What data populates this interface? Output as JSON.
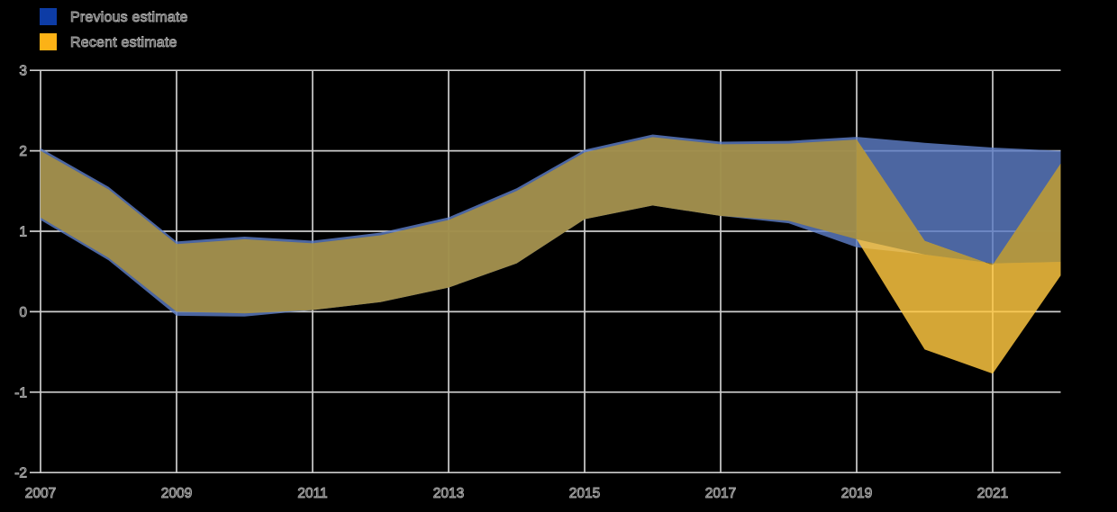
{
  "background_color": "#000000",
  "legend": {
    "position": "top-left",
    "items": [
      {
        "label": "Previous estimate",
        "swatch_color": "#0d3ca6"
      },
      {
        "label": "Recent estimate",
        "swatch_color": "#fcb216"
      }
    ]
  },
  "chart_data": {
    "type": "area",
    "subtype": "range-band",
    "title": "",
    "xlabel": "",
    "ylabel": "",
    "x_range": [
      2007,
      2022
    ],
    "ylim": [
      -2,
      3
    ],
    "grid": true,
    "legend_position": "top-left",
    "years": [
      2007,
      2008,
      2009,
      2010,
      2011,
      2012,
      2013,
      2014,
      2015,
      2016,
      2017,
      2018,
      2019,
      2020,
      2021,
      2022
    ],
    "x_tick_years": [
      2007,
      2009,
      2011,
      2013,
      2015,
      2017,
      2019,
      2021
    ],
    "x_tick_labels": [
      "2007",
      "2009",
      "2011",
      "2013",
      "2015",
      "2017",
      "2019",
      "2021"
    ],
    "y_tick_values": [
      3,
      2,
      1,
      0,
      -1,
      -2
    ],
    "y_tick_labels": [
      "3",
      "2",
      "1",
      "0",
      "-1",
      "-2"
    ],
    "series": [
      {
        "name": "Previous estimate",
        "fill_color": "rgba(93,124,197,0.82)",
        "upper": [
          2.0,
          1.52,
          0.84,
          0.9,
          0.85,
          0.95,
          1.14,
          1.5,
          1.98,
          2.17,
          2.08,
          2.09,
          2.14,
          2.1,
          2.04,
          2.0
        ],
        "lower": [
          1.14,
          0.64,
          -0.05,
          -0.06,
          0.02,
          0.12,
          0.3,
          0.6,
          1.15,
          1.32,
          1.19,
          1.1,
          0.8,
          0.71,
          0.6,
          0.62
        ]
      },
      {
        "name": "Recent estimate",
        "fill_color": "rgba(255,200,65,0.83)",
        "upper": [
          2.0,
          1.52,
          0.84,
          0.9,
          0.85,
          0.95,
          1.14,
          1.5,
          1.98,
          2.17,
          2.08,
          2.09,
          2.14,
          0.88,
          0.58,
          1.84
        ],
        "lower": [
          1.17,
          0.67,
          0.0,
          -0.02,
          0.02,
          0.12,
          0.3,
          0.6,
          1.15,
          1.32,
          1.19,
          1.13,
          0.9,
          -0.47,
          -0.77,
          0.45
        ]
      }
    ],
    "divergence_year": 2019,
    "overlap_fill_color": "rgba(168,145,63,0.88)",
    "gridline_color": "#cdcdcd",
    "label_outline_color": "#a9a9a9"
  }
}
